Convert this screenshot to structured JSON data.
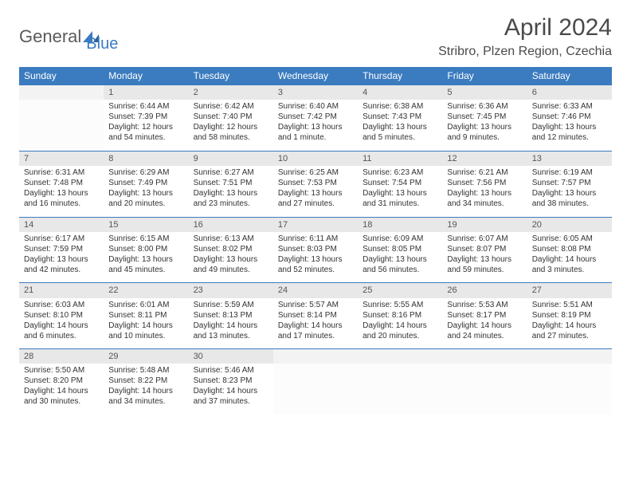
{
  "logo": {
    "part1": "General",
    "part2": "Blue"
  },
  "title": "April 2024",
  "location": "Stribro, Plzen Region, Czechia",
  "colors": {
    "header_bg": "#3b7bbf",
    "header_text": "#ffffff",
    "daynum_bg": "#e8e8e8",
    "border": "#3b7bbf",
    "text": "#333333"
  },
  "weekdays": [
    "Sunday",
    "Monday",
    "Tuesday",
    "Wednesday",
    "Thursday",
    "Friday",
    "Saturday"
  ],
  "weeks": [
    [
      null,
      {
        "n": "1",
        "sr": "Sunrise: 6:44 AM",
        "ss": "Sunset: 7:39 PM",
        "d1": "Daylight: 12 hours",
        "d2": "and 54 minutes."
      },
      {
        "n": "2",
        "sr": "Sunrise: 6:42 AM",
        "ss": "Sunset: 7:40 PM",
        "d1": "Daylight: 12 hours",
        "d2": "and 58 minutes."
      },
      {
        "n": "3",
        "sr": "Sunrise: 6:40 AM",
        "ss": "Sunset: 7:42 PM",
        "d1": "Daylight: 13 hours",
        "d2": "and 1 minute."
      },
      {
        "n": "4",
        "sr": "Sunrise: 6:38 AM",
        "ss": "Sunset: 7:43 PM",
        "d1": "Daylight: 13 hours",
        "d2": "and 5 minutes."
      },
      {
        "n": "5",
        "sr": "Sunrise: 6:36 AM",
        "ss": "Sunset: 7:45 PM",
        "d1": "Daylight: 13 hours",
        "d2": "and 9 minutes."
      },
      {
        "n": "6",
        "sr": "Sunrise: 6:33 AM",
        "ss": "Sunset: 7:46 PM",
        "d1": "Daylight: 13 hours",
        "d2": "and 12 minutes."
      }
    ],
    [
      {
        "n": "7",
        "sr": "Sunrise: 6:31 AM",
        "ss": "Sunset: 7:48 PM",
        "d1": "Daylight: 13 hours",
        "d2": "and 16 minutes."
      },
      {
        "n": "8",
        "sr": "Sunrise: 6:29 AM",
        "ss": "Sunset: 7:49 PM",
        "d1": "Daylight: 13 hours",
        "d2": "and 20 minutes."
      },
      {
        "n": "9",
        "sr": "Sunrise: 6:27 AM",
        "ss": "Sunset: 7:51 PM",
        "d1": "Daylight: 13 hours",
        "d2": "and 23 minutes."
      },
      {
        "n": "10",
        "sr": "Sunrise: 6:25 AM",
        "ss": "Sunset: 7:53 PM",
        "d1": "Daylight: 13 hours",
        "d2": "and 27 minutes."
      },
      {
        "n": "11",
        "sr": "Sunrise: 6:23 AM",
        "ss": "Sunset: 7:54 PM",
        "d1": "Daylight: 13 hours",
        "d2": "and 31 minutes."
      },
      {
        "n": "12",
        "sr": "Sunrise: 6:21 AM",
        "ss": "Sunset: 7:56 PM",
        "d1": "Daylight: 13 hours",
        "d2": "and 34 minutes."
      },
      {
        "n": "13",
        "sr": "Sunrise: 6:19 AM",
        "ss": "Sunset: 7:57 PM",
        "d1": "Daylight: 13 hours",
        "d2": "and 38 minutes."
      }
    ],
    [
      {
        "n": "14",
        "sr": "Sunrise: 6:17 AM",
        "ss": "Sunset: 7:59 PM",
        "d1": "Daylight: 13 hours",
        "d2": "and 42 minutes."
      },
      {
        "n": "15",
        "sr": "Sunrise: 6:15 AM",
        "ss": "Sunset: 8:00 PM",
        "d1": "Daylight: 13 hours",
        "d2": "and 45 minutes."
      },
      {
        "n": "16",
        "sr": "Sunrise: 6:13 AM",
        "ss": "Sunset: 8:02 PM",
        "d1": "Daylight: 13 hours",
        "d2": "and 49 minutes."
      },
      {
        "n": "17",
        "sr": "Sunrise: 6:11 AM",
        "ss": "Sunset: 8:03 PM",
        "d1": "Daylight: 13 hours",
        "d2": "and 52 minutes."
      },
      {
        "n": "18",
        "sr": "Sunrise: 6:09 AM",
        "ss": "Sunset: 8:05 PM",
        "d1": "Daylight: 13 hours",
        "d2": "and 56 minutes."
      },
      {
        "n": "19",
        "sr": "Sunrise: 6:07 AM",
        "ss": "Sunset: 8:07 PM",
        "d1": "Daylight: 13 hours",
        "d2": "and 59 minutes."
      },
      {
        "n": "20",
        "sr": "Sunrise: 6:05 AM",
        "ss": "Sunset: 8:08 PM",
        "d1": "Daylight: 14 hours",
        "d2": "and 3 minutes."
      }
    ],
    [
      {
        "n": "21",
        "sr": "Sunrise: 6:03 AM",
        "ss": "Sunset: 8:10 PM",
        "d1": "Daylight: 14 hours",
        "d2": "and 6 minutes."
      },
      {
        "n": "22",
        "sr": "Sunrise: 6:01 AM",
        "ss": "Sunset: 8:11 PM",
        "d1": "Daylight: 14 hours",
        "d2": "and 10 minutes."
      },
      {
        "n": "23",
        "sr": "Sunrise: 5:59 AM",
        "ss": "Sunset: 8:13 PM",
        "d1": "Daylight: 14 hours",
        "d2": "and 13 minutes."
      },
      {
        "n": "24",
        "sr": "Sunrise: 5:57 AM",
        "ss": "Sunset: 8:14 PM",
        "d1": "Daylight: 14 hours",
        "d2": "and 17 minutes."
      },
      {
        "n": "25",
        "sr": "Sunrise: 5:55 AM",
        "ss": "Sunset: 8:16 PM",
        "d1": "Daylight: 14 hours",
        "d2": "and 20 minutes."
      },
      {
        "n": "26",
        "sr": "Sunrise: 5:53 AM",
        "ss": "Sunset: 8:17 PM",
        "d1": "Daylight: 14 hours",
        "d2": "and 24 minutes."
      },
      {
        "n": "27",
        "sr": "Sunrise: 5:51 AM",
        "ss": "Sunset: 8:19 PM",
        "d1": "Daylight: 14 hours",
        "d2": "and 27 minutes."
      }
    ],
    [
      {
        "n": "28",
        "sr": "Sunrise: 5:50 AM",
        "ss": "Sunset: 8:20 PM",
        "d1": "Daylight: 14 hours",
        "d2": "and 30 minutes."
      },
      {
        "n": "29",
        "sr": "Sunrise: 5:48 AM",
        "ss": "Sunset: 8:22 PM",
        "d1": "Daylight: 14 hours",
        "d2": "and 34 minutes."
      },
      {
        "n": "30",
        "sr": "Sunrise: 5:46 AM",
        "ss": "Sunset: 8:23 PM",
        "d1": "Daylight: 14 hours",
        "d2": "and 37 minutes."
      },
      null,
      null,
      null,
      null
    ]
  ]
}
